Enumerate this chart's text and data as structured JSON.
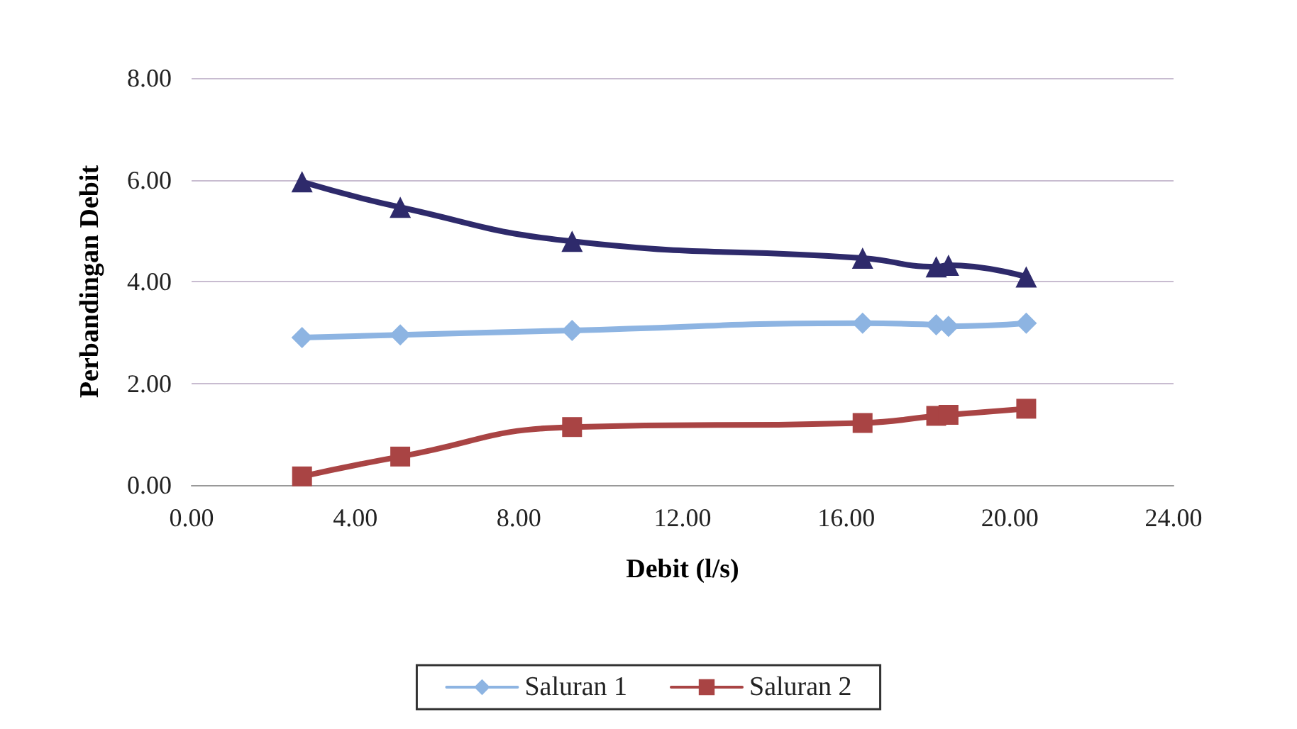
{
  "chart_data": {
    "type": "line",
    "xlabel": "Debit (l/s)",
    "ylabel": "Perbandingan Debit",
    "x": [
      2.7,
      5.1,
      9.3,
      16.4,
      18.2,
      18.5,
      20.4
    ],
    "series": [
      {
        "name": "Saluran 1",
        "color": "#8db4e2",
        "marker": "diamond",
        "values": [
          2.9,
          2.95,
          3.04,
          3.18,
          3.15,
          3.12,
          3.18
        ]
      },
      {
        "name": "Saluran 2",
        "color": "#a94444",
        "marker": "square",
        "values": [
          0.17,
          0.56,
          1.14,
          1.22,
          1.36,
          1.38,
          1.5
        ]
      },
      {
        "color": "#2e2a6b",
        "marker": "triangle",
        "values": [
          5.96,
          5.46,
          4.79,
          4.46,
          4.29,
          4.32,
          4.09
        ]
      }
    ],
    "xlim": [
      0,
      24
    ],
    "xticks": [
      {
        "value": 0,
        "label": "0.00"
      },
      {
        "value": 4,
        "label": "4.00"
      },
      {
        "value": 8,
        "label": "8.00"
      },
      {
        "value": 12,
        "label": "12.00"
      },
      {
        "value": 16,
        "label": "16.00"
      },
      {
        "value": 20,
        "label": "20.00"
      },
      {
        "value": 24,
        "label": "24.00"
      }
    ],
    "ylim": [
      0,
      8
    ],
    "yticks": [
      {
        "value": 0,
        "label": "0.00"
      },
      {
        "value": 2,
        "label": "2.00"
      },
      {
        "value": 4,
        "label": "4.00"
      },
      {
        "value": 6,
        "label": "6.00"
      },
      {
        "value": 8,
        "label": "8.00"
      }
    ],
    "grid": "y",
    "legend": "bottom",
    "line_style": "solid"
  }
}
